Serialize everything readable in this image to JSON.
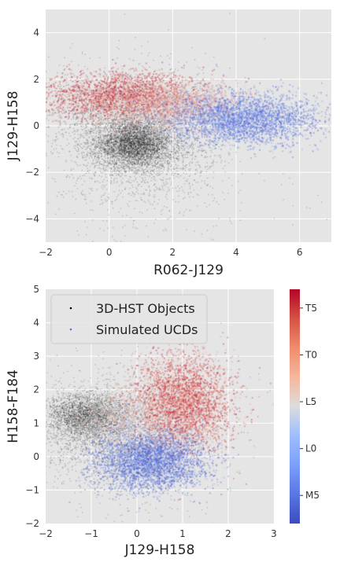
{
  "chart_data": [
    {
      "type": "scatter",
      "xlabel": "R062-J129",
      "ylabel": "J129-H158",
      "xlim": [
        -2,
        7
      ],
      "ylim": [
        -5,
        5
      ],
      "xticks": [
        -2,
        0,
        2,
        4,
        6
      ],
      "yticks": [
        -4,
        -2,
        0,
        2,
        4
      ],
      "grid": true,
      "series": [
        {
          "name": "3D-HST Objects",
          "color": "#000000",
          "clusters": [
            {
              "x": 0.8,
              "y": -0.8,
              "sx": 0.6,
              "sy": 0.5,
              "n": 3600
            },
            {
              "x": 1.0,
              "y": -0.5,
              "sx": 1.2,
              "sy": 1.4,
              "n": 2600
            },
            {
              "x": 0.0,
              "y": 0.5,
              "sx": 1.0,
              "sy": 0.9,
              "n": 700
            },
            {
              "x": 1.5,
              "y": -1.5,
              "sx": 2.5,
              "sy": 2.0,
              "n": 300
            }
          ]
        },
        {
          "name": "Simulated UCDs",
          "colormap": "coolwarm",
          "clusters": [
            {
              "x": 0.5,
              "y": 1.3,
              "sx": 1.3,
              "sy": 0.5,
              "n": 2200,
              "spt": 23
            },
            {
              "x": 2.0,
              "y": 0.9,
              "sx": 1.1,
              "sy": 0.5,
              "n": 1600,
              "spt": 16
            },
            {
              "x": 4.2,
              "y": 0.3,
              "sx": 1.2,
              "sy": 0.55,
              "n": 3000,
              "spt": 4
            }
          ]
        }
      ]
    },
    {
      "type": "scatter",
      "xlabel": "J129-H158",
      "ylabel": "H158-F184",
      "xlim": [
        -2,
        3
      ],
      "ylim": [
        -2,
        5
      ],
      "xticks": [
        -2,
        -1,
        0,
        1,
        2,
        3
      ],
      "yticks": [
        -2,
        -1,
        0,
        1,
        2,
        3,
        4,
        5
      ],
      "grid": true,
      "legend": {
        "location": "upper-left",
        "entries": [
          "3D-HST Objects",
          "Simulated UCDs"
        ]
      },
      "colorbar": {
        "colormap": "coolwarm",
        "ticks": [
          "M5",
          "L0",
          "L5",
          "T0",
          "T5"
        ]
      },
      "series": [
        {
          "name": "3D-HST Objects",
          "color": "#000000",
          "clusters": [
            {
              "x": -1.1,
              "y": 1.2,
              "sx": 0.45,
              "sy": 0.35,
              "n": 2800
            },
            {
              "x": -0.5,
              "y": 0.6,
              "sx": 0.9,
              "sy": 0.8,
              "n": 1800
            },
            {
              "x": 0.0,
              "y": 0.5,
              "sx": 1.2,
              "sy": 1.3,
              "n": 400
            }
          ]
        },
        {
          "name": "Simulated UCDs",
          "colormap": "coolwarm",
          "clusters": [
            {
              "x": 1.0,
              "y": 1.6,
              "sx": 0.55,
              "sy": 0.7,
              "n": 3200,
              "spt": 22
            },
            {
              "x": 0.3,
              "y": -0.1,
              "sx": 0.6,
              "sy": 0.45,
              "n": 3000,
              "spt": 3
            },
            {
              "x": -0.2,
              "y": 1.2,
              "sx": 0.6,
              "sy": 0.5,
              "n": 800,
              "spt": 14
            }
          ]
        }
      ]
    }
  ]
}
